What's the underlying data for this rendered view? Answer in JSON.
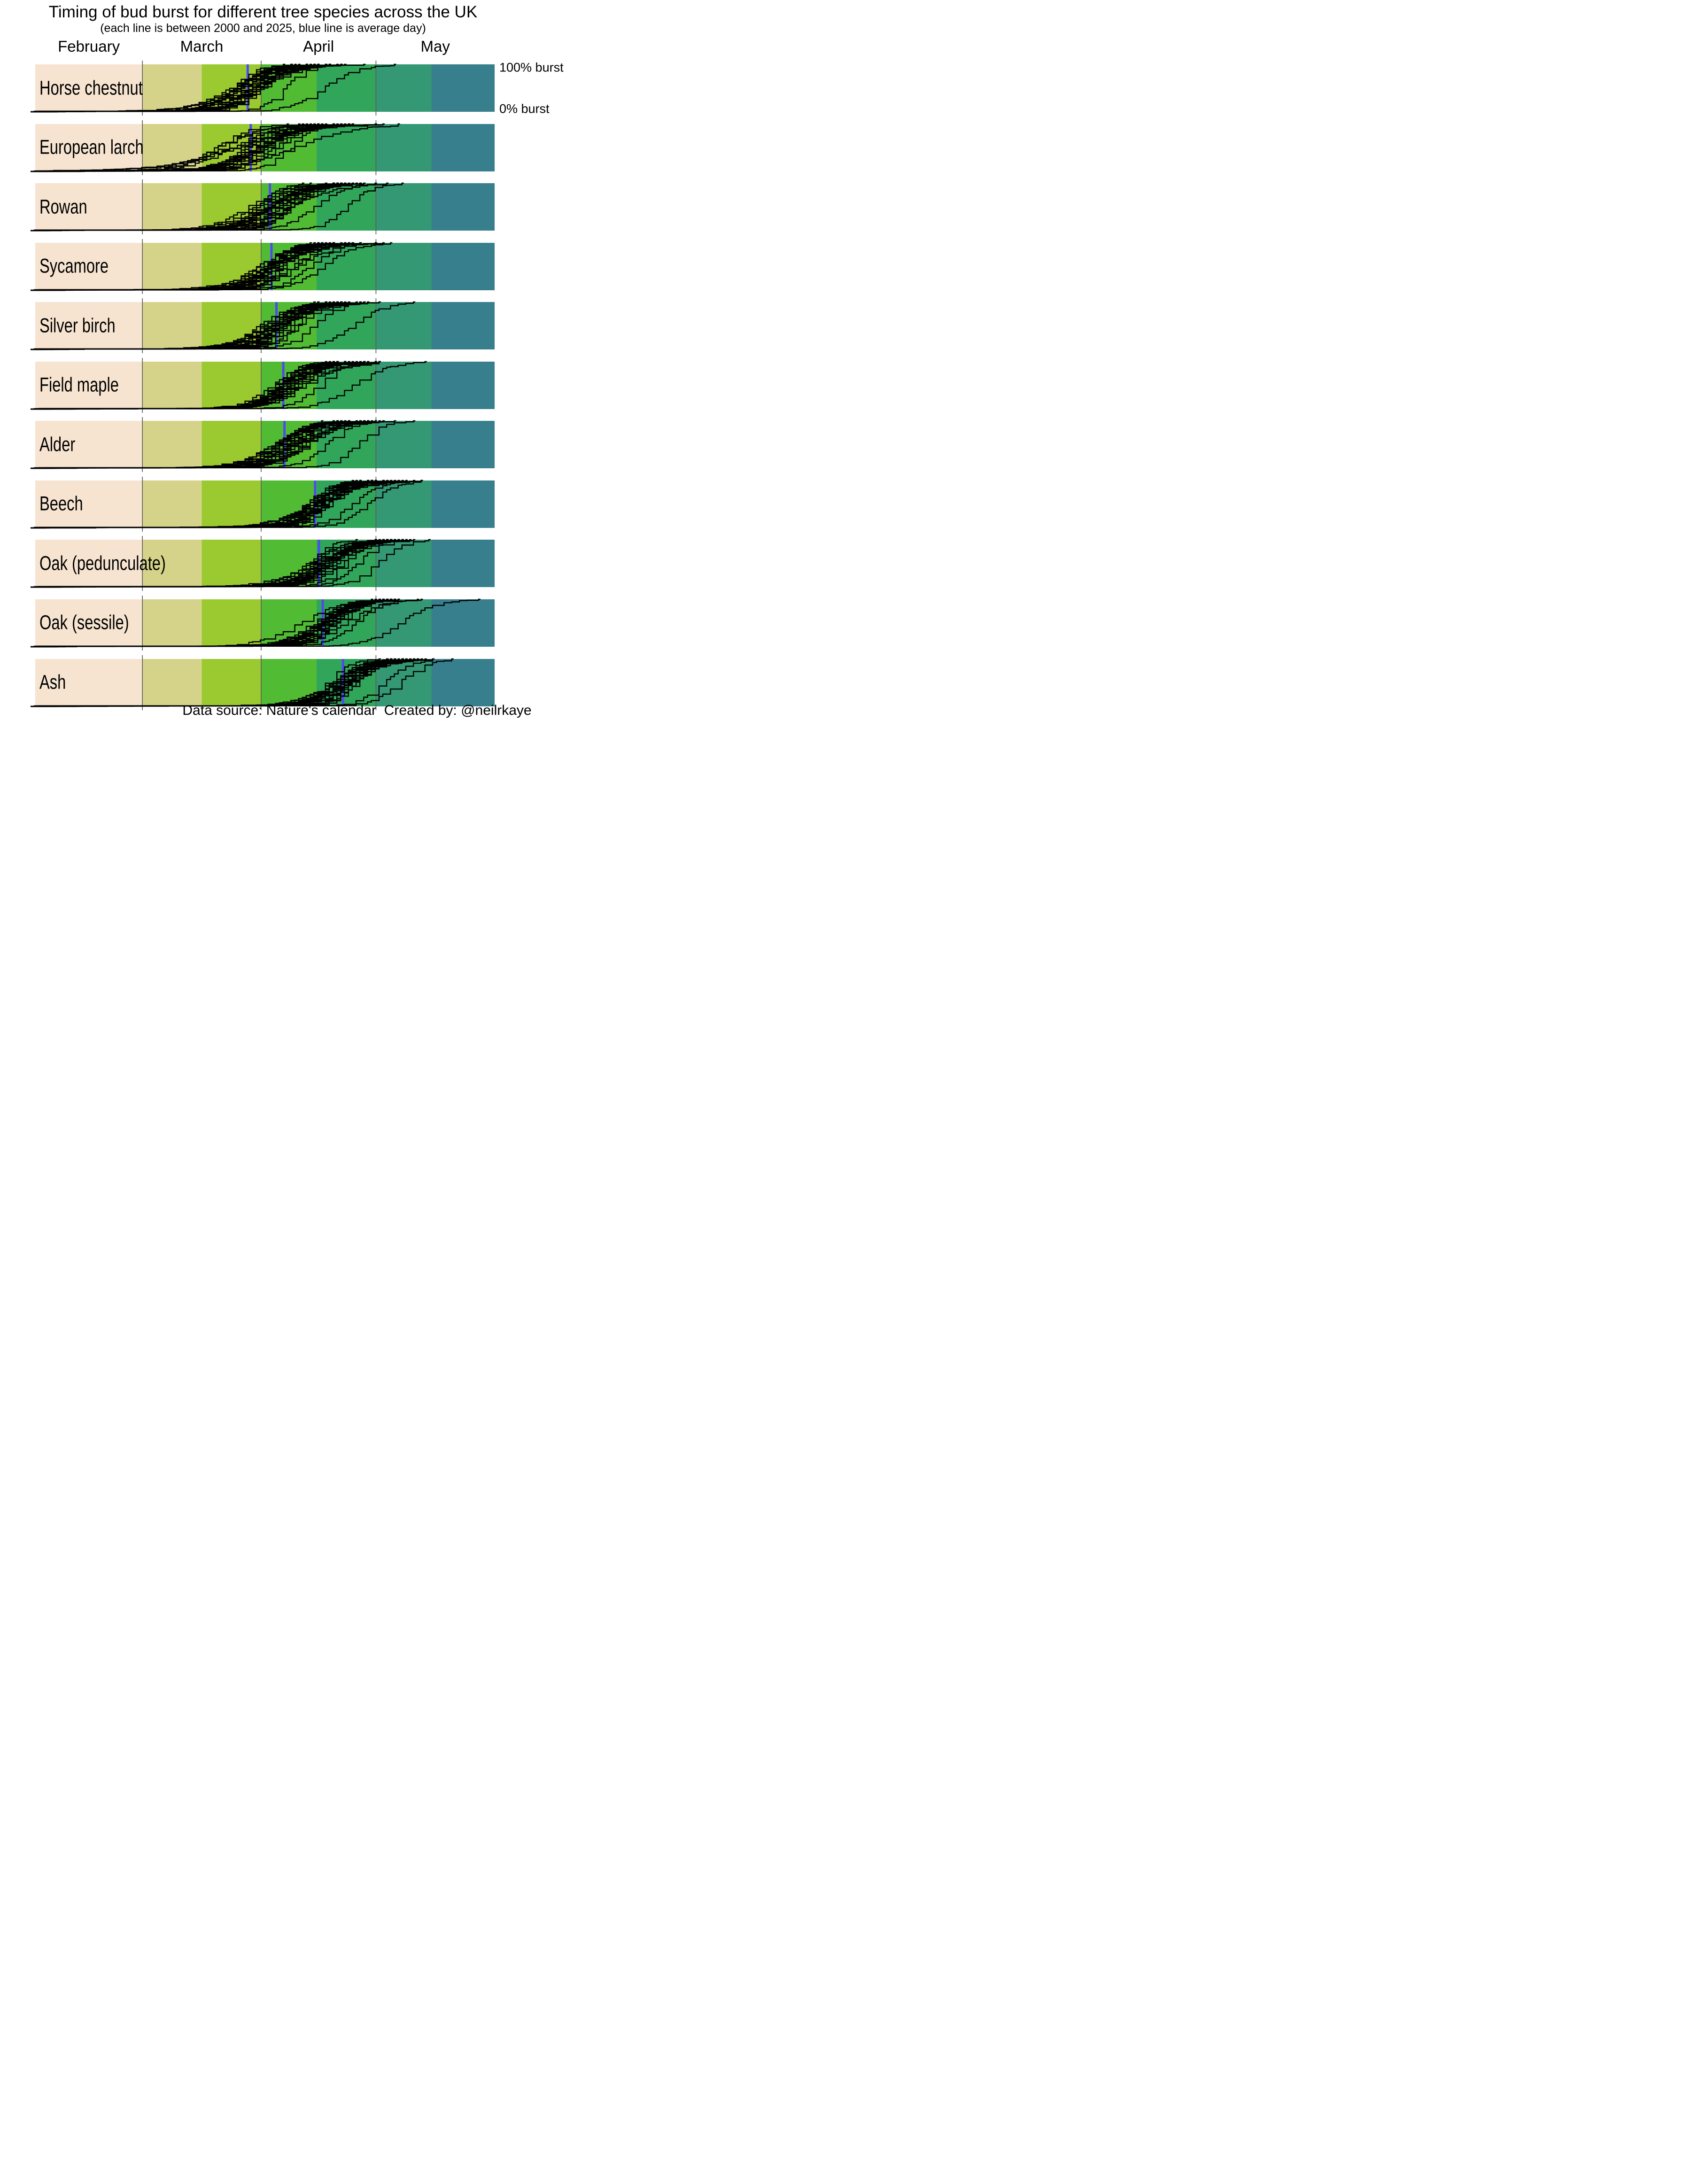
{
  "title": "Timing of bud burst for different tree species across the UK",
  "subtitle": "(each line is between 2000 and 2025, blue line is average day)",
  "footer": "Data source: Nature's calendar  Created by: @neilrkaye",
  "right_labels": {
    "top": "100% burst",
    "bottom": "0% burst"
  },
  "axis": {
    "start_day_of_year": 32,
    "end_day_of_year": 152,
    "curve_start_day": 30.8,
    "months": [
      {
        "label": "February",
        "from": 32,
        "to": 60
      },
      {
        "label": "March",
        "from": 60,
        "to": 91
      },
      {
        "label": "April",
        "from": 91,
        "to": 121
      },
      {
        "label": "May",
        "from": 121,
        "to": 152
      }
    ],
    "gridline_days": [
      60,
      91,
      121
    ]
  },
  "bands": [
    {
      "from": 32,
      "to": 60,
      "color": "#f6e4d0"
    },
    {
      "from": 60,
      "to": 75.5,
      "color": "#d5d389"
    },
    {
      "from": 75.5,
      "to": 91,
      "color": "#9ac930"
    },
    {
      "from": 91,
      "to": 105.5,
      "color": "#52bb34"
    },
    {
      "from": 105.5,
      "to": 121,
      "color": "#31a65a"
    },
    {
      "from": 121,
      "to": 135.5,
      "color": "#349874"
    },
    {
      "from": 135.5,
      "to": 152,
      "color": "#377f8d"
    }
  ],
  "style": {
    "avg_line_color": "#4c4bee",
    "curve_color": "#000000",
    "gridline_color": "#5a5a5a"
  },
  "lines": {
    "per_species": 26,
    "seed": 11
  },
  "species": [
    {
      "name": "Horse chestnut",
      "avg_day": 87.5,
      "spread": 1.15
    },
    {
      "name": "European larch",
      "avg_day": 88.3,
      "spread": 1.5
    },
    {
      "name": "Rowan",
      "avg_day": 93.3,
      "spread": 1.1
    },
    {
      "name": "Sycamore",
      "avg_day": 93.7,
      "spread": 1.0
    },
    {
      "name": "Silver birch",
      "avg_day": 95.0,
      "spread": 1.0
    },
    {
      "name": "Field maple",
      "avg_day": 96.8,
      "spread": 1.0
    },
    {
      "name": "Alder",
      "avg_day": 97.1,
      "spread": 1.05
    },
    {
      "name": "Beech",
      "avg_day": 105.1,
      "spread": 0.85
    },
    {
      "name": "Oak (pedunculate)",
      "avg_day": 106.1,
      "spread": 0.9
    },
    {
      "name": "Oak (sessile)",
      "avg_day": 107.1,
      "spread": 0.95
    },
    {
      "name": "Ash",
      "avg_day": 112.4,
      "spread": 0.95
    }
  ],
  "chart_data": {
    "type": "line",
    "title": "Timing of bud burst for different tree species across the UK",
    "subtitle": "(each line is between 2000 and 2025, blue line is average day)",
    "description": "Small multiples: one panel per species, each showing ~26 cumulative bud-burst curves (one per year 2000-2025) rising from 0% to 100%, with a blue vertical line at the average bud burst day.",
    "x_axis": {
      "tick_labels": [
        "February",
        "March",
        "April",
        "May"
      ],
      "start_day_of_year": 32,
      "end_day_of_year": 152
    },
    "y_axis": {
      "top_label": "100% burst",
      "bottom_label": "0% burst",
      "range": [
        0,
        100
      ]
    },
    "years_range": [
      2000,
      2025
    ],
    "curves_per_species": 26,
    "average_line_color": "#4c4bee",
    "species_average_burst": [
      {
        "name": "Horse chestnut",
        "avg_day_of_year": 87,
        "approx_date": "Mar 28"
      },
      {
        "name": "European larch",
        "avg_day_of_year": 88,
        "approx_date": "Mar 29"
      },
      {
        "name": "Rowan",
        "avg_day_of_year": 93,
        "approx_date": "Apr 3"
      },
      {
        "name": "Sycamore",
        "avg_day_of_year": 94,
        "approx_date": "Apr 4"
      },
      {
        "name": "Silver birch",
        "avg_day_of_year": 95,
        "approx_date": "Apr 5"
      },
      {
        "name": "Field maple",
        "avg_day_of_year": 97,
        "approx_date": "Apr 7"
      },
      {
        "name": "Alder",
        "avg_day_of_year": 97,
        "approx_date": "Apr 7"
      },
      {
        "name": "Beech",
        "avg_day_of_year": 105,
        "approx_date": "Apr 15"
      },
      {
        "name": "Oak (pedunculate)",
        "avg_day_of_year": 106,
        "approx_date": "Apr 16"
      },
      {
        "name": "Oak (sessile)",
        "avg_day_of_year": 107,
        "approx_date": "Apr 17"
      },
      {
        "name": "Ash",
        "avg_day_of_year": 112,
        "approx_date": "Apr 22"
      }
    ],
    "background_bands": [
      {
        "period": "February",
        "color": "#f6e4d0"
      },
      {
        "period": "March 1-15",
        "color": "#d5d389"
      },
      {
        "period": "March 16-31",
        "color": "#9ac930"
      },
      {
        "period": "April 1-15",
        "color": "#52bb34"
      },
      {
        "period": "April 16-30",
        "color": "#31a65a"
      },
      {
        "period": "May 1-15",
        "color": "#349874"
      },
      {
        "period": "May 16-31",
        "color": "#377f8d"
      }
    ],
    "gridlines_at": [
      "Mar 1",
      "Apr 1",
      "May 1"
    ]
  }
}
